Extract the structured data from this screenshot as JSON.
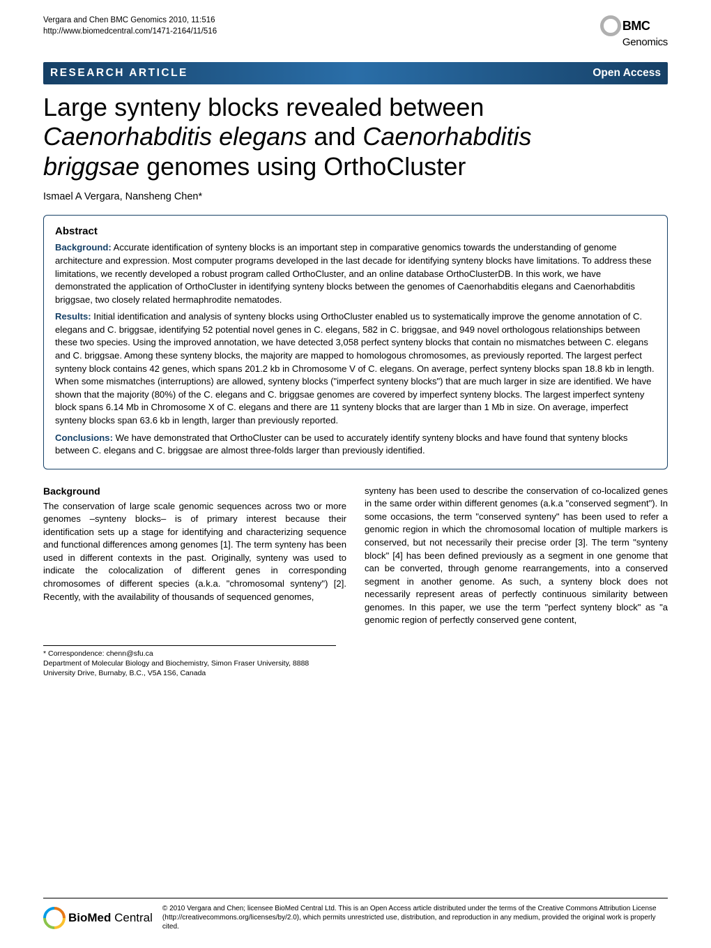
{
  "meta": {
    "citation": "Vergara and Chen BMC Genomics 2010, 11:516",
    "url": "http://www.biomedcentral.com/1471-2164/11/516"
  },
  "logo": {
    "top": "BMC",
    "bottom": "Genomics"
  },
  "typebar": {
    "label": "RESEARCH ARTICLE",
    "access": "Open Access"
  },
  "title": {
    "l1a": "Large synteny blocks revealed between",
    "l2a": "Caenorhabditis elegans",
    "l2b": " and ",
    "l2c": "Caenorhabditis",
    "l3a": "briggsae",
    "l3b": " genomes using OrthoCluster"
  },
  "authors": "Ismael A Vergara, Nansheng Chen*",
  "abstract": {
    "heading": "Abstract",
    "bg_label": "Background:",
    "bg": " Accurate identification of synteny blocks is an important step in comparative genomics towards the understanding of genome architecture and expression. Most computer programs developed in the last decade for identifying synteny blocks have limitations. To address these limitations, we recently developed a robust program called OrthoCluster, and an online database OrthoClusterDB. In this work, we have demonstrated the application of OrthoCluster in identifying synteny blocks between the genomes of Caenorhabditis elegans and Caenorhabditis briggsae, two closely related hermaphrodite nematodes.",
    "res_label": "Results:",
    "res": " Initial identification and analysis of synteny blocks using OrthoCluster enabled us to systematically improve the genome annotation of C. elegans and C. briggsae, identifying 52 potential novel genes in C. elegans, 582 in C. briggsae, and 949 novel orthologous relationships between these two species. Using the improved annotation, we have detected 3,058 perfect synteny blocks that contain no mismatches between C. elegans and C. briggsae. Among these synteny blocks, the majority are mapped to homologous chromosomes, as previously reported. The largest perfect synteny block contains 42 genes, which spans 201.2 kb in Chromosome V of C. elegans. On average, perfect synteny blocks span 18.8 kb in length. When some mismatches (interruptions) are allowed, synteny blocks (\"imperfect synteny blocks\") that are much larger in size are identified. We have shown that the majority (80%) of the C. elegans and C. briggsae genomes are covered by imperfect synteny blocks. The largest imperfect synteny block spans 6.14 Mb in Chromosome X of C. elegans and there are 11 synteny blocks that are larger than 1 Mb in size. On average, imperfect synteny blocks span 63.6 kb in length, larger than previously reported.",
    "con_label": "Conclusions:",
    "con": " We have demonstrated that OrthoCluster can be used to accurately identify synteny blocks and have found that synteny blocks between C. elegans and C. briggsae are almost three-folds larger than previously identified."
  },
  "body": {
    "heading": "Background",
    "col1": "The conservation of large scale genomic sequences across two or more genomes –synteny blocks– is of primary interest because their identification sets up a stage for identifying and characterizing sequence and functional differences among genomes [1]. The term synteny has been used in different contexts in the past. Originally, synteny was used to indicate the colocalization of different genes in corresponding chromosomes of different species (a.k.a. \"chromosomal synteny\") [2]. Recently, with the availability of thousands of sequenced genomes,",
    "col2": "synteny has been used to describe the conservation of co-localized genes in the same order within different genomes (a.k.a \"conserved segment\"). In some occasions, the term \"conserved synteny\" has been used to refer a genomic region in which the chromosomal location of multiple markers is conserved, but not necessarily their precise order [3]. The term \"synteny block\" [4] has been defined previously as a segment in one genome that can be converted, through genome rearrangements, into a conserved segment in another genome. As such, a synteny block does not necessarily represent areas of perfectly continuous similarity between genomes. In this paper, we use the term \"perfect synteny block\" as \"a genomic region of perfectly conserved gene content,"
  },
  "correspondence": {
    "line1": "* Correspondence: chenn@sfu.ca",
    "line2": "Department of Molecular Biology and Biochemistry, Simon Fraser University, 8888 University Drive, Burnaby, B.C., V5A 1S6, Canada"
  },
  "footer": {
    "logo_a": "BioMed",
    "logo_b": " Central",
    "copyright": "© 2010 Vergara and Chen; licensee BioMed Central Ltd. This is an Open Access article distributed under the terms of the Creative Commons Attribution License (http://creativecommons.org/licenses/by/2.0), which permits unrestricted use, distribution, and reproduction in any medium, provided the original work is properly cited."
  },
  "colors": {
    "bar": "#164066",
    "headings": "#164066"
  }
}
